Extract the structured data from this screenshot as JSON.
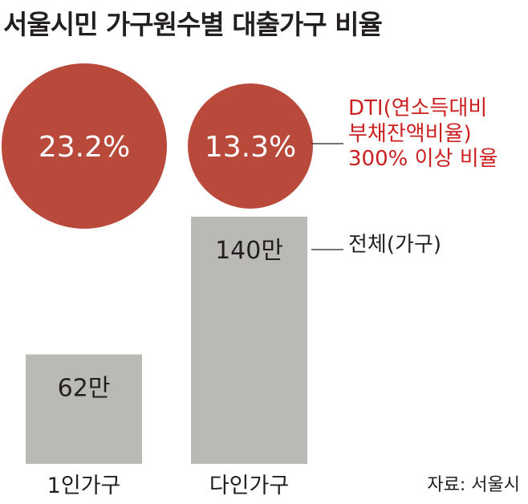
{
  "title": "서울시민 가구원수별 대출가구 비율",
  "source": "자료: 서울시",
  "colors": {
    "circle": "#b9493a",
    "bar": "#bbb9b6",
    "legend_red_text": "#cc1f1f",
    "text": "#231f20",
    "white_text": "#ffffff"
  },
  "chart_data": {
    "type": "bar",
    "categories": [
      "1인가구",
      "다인가구"
    ],
    "series": [
      {
        "name": "전체(가구)",
        "values": [
          62,
          140
        ],
        "value_labels": [
          "62만",
          "140만"
        ],
        "unit": "만 가구",
        "mark": "bar"
      },
      {
        "name": "DTI(연소득대비 부채잔액비율) 300% 이상 비율",
        "values": [
          23.2,
          13.3
        ],
        "value_labels": [
          "23.2%",
          "13.3%"
        ],
        "unit": "%",
        "mark": "circle"
      }
    ],
    "legend": {
      "circle_lines": [
        "DTI(연소득대비",
        "부채잔액비율)",
        "300% 이상 비율"
      ],
      "bar_label": "전체(가구)",
      "placement": "right"
    },
    "grid": false,
    "axes_visible": false
  }
}
